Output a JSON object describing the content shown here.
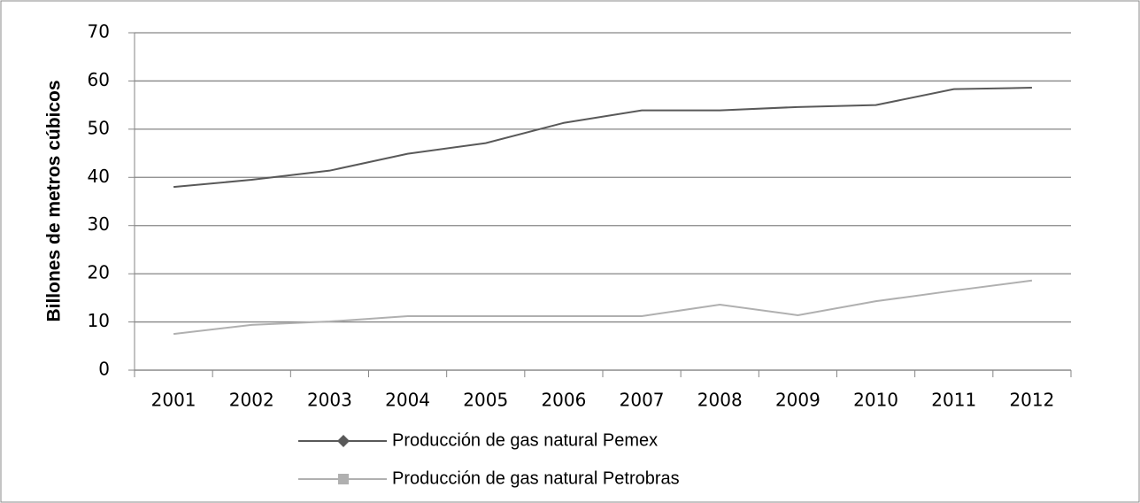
{
  "chart_data": {
    "type": "line",
    "y_axis_label": "Billones de metros cúbicos",
    "categories": [
      "2001",
      "2002",
      "2003",
      "2004",
      "2005",
      "2006",
      "2007",
      "2008",
      "2009",
      "2010",
      "2011",
      "2012"
    ],
    "series": [
      {
        "name": "Producción de gas natural Pemex",
        "color": "#595959",
        "marker": "diamond",
        "values": [
          38,
          39.5,
          41.4,
          44.9,
          47.1,
          51.3,
          53.9,
          53.9,
          54.6,
          55,
          58.3,
          58.6
        ]
      },
      {
        "name": "Producción de gas natural Petrobras",
        "color": "#b0b0b0",
        "marker": "square",
        "values": [
          7.5,
          9.4,
          10.1,
          11.2,
          11.2,
          11.2,
          11.2,
          13.6,
          11.4,
          14.3,
          16.5,
          18.6
        ]
      }
    ],
    "ylim": [
      0,
      70
    ],
    "yticks": [
      0,
      10,
      20,
      30,
      40,
      50,
      60,
      70
    ],
    "grid": true,
    "legend": "bottom"
  }
}
